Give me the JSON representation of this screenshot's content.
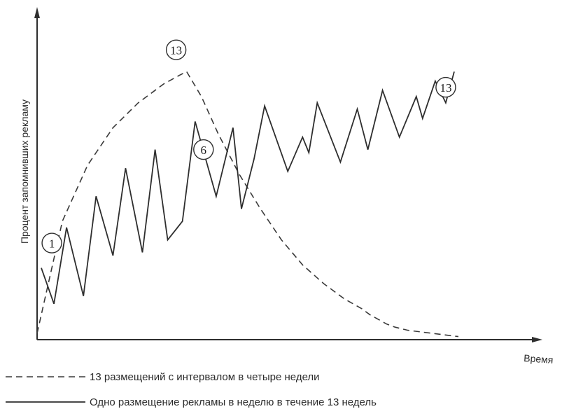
{
  "chart_data": {
    "type": "line",
    "title": "",
    "xlabel": "Время",
    "ylabel": "Процент запомнивших рекламу",
    "xlim": [
      0,
      100
    ],
    "ylim": [
      0,
      100
    ],
    "grid": false,
    "legend_position": "bottom",
    "series": [
      {
        "name": "13 размещений с интервалом в четыре недели",
        "style": "dashed",
        "color": "#3a3a3a",
        "x": [
          0,
          6,
          12,
          18,
          24,
          30,
          34,
          35.5,
          39,
          43,
          48,
          53,
          58,
          63,
          68,
          73,
          77,
          79,
          81,
          83,
          85,
          88,
          91,
          94,
          100
        ],
        "y": [
          2,
          38,
          56,
          68,
          76,
          82,
          85,
          86,
          78,
          66,
          53,
          42,
          32,
          24,
          18,
          13,
          10,
          8,
          6.5,
          5,
          4,
          3,
          2.5,
          2,
          1
        ]
      },
      {
        "name": "Одно размещение рекламы в неделю в течение 13 недель",
        "style": "solid",
        "color": "#2e2e2e",
        "x": [
          1,
          4,
          7,
          11,
          14,
          18,
          21,
          25,
          28,
          31,
          34.5,
          37.5,
          42.5,
          46.5,
          48.5,
          51.5,
          54,
          59.5,
          63,
          64.5,
          66.5,
          72,
          76,
          78.5,
          82,
          86,
          90,
          91.5,
          94.5,
          97,
          99
        ],
        "y": [
          23,
          11.5,
          36,
          14,
          46,
          27,
          55,
          28,
          61,
          32,
          38,
          70,
          46,
          68,
          42,
          58,
          75,
          54,
          65,
          60,
          76,
          57,
          74,
          61,
          80,
          65,
          78,
          71,
          83,
          76,
          86
        ]
      }
    ],
    "markers": [
      {
        "label": "1",
        "x": 3.5,
        "y": 31
      },
      {
        "label": "13",
        "x": 33,
        "y": 93
      },
      {
        "label": "6",
        "x": 39.5,
        "y": 61
      },
      {
        "label": "13",
        "x": 97,
        "y": 81
      }
    ],
    "legend": [
      {
        "label": "13 размещений с интервалом в четыре недели",
        "style": "dashed"
      },
      {
        "label": "Одно размещение рекламы в неделю в течение 13 недель",
        "style": "solid"
      }
    ]
  }
}
